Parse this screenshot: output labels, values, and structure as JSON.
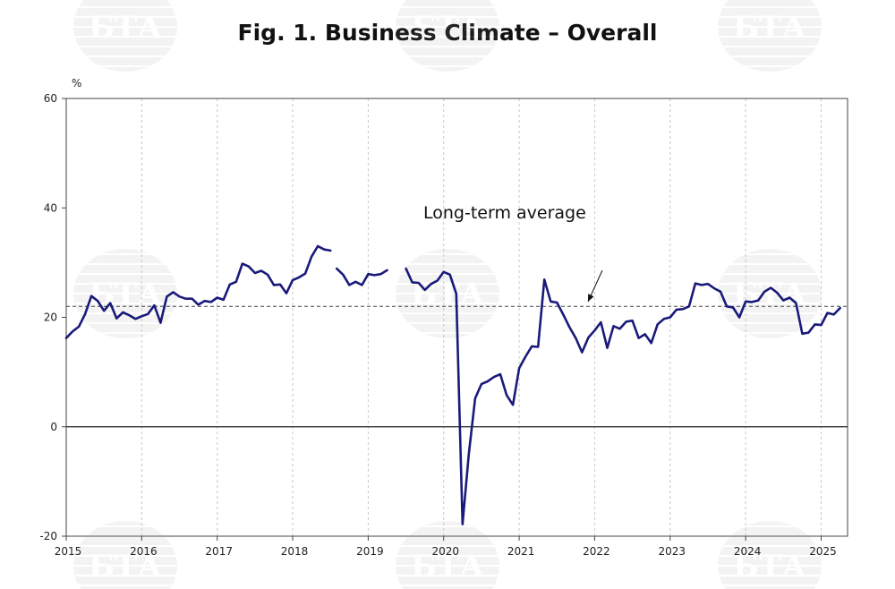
{
  "title": "Fig. 1. Business Climate – Overall",
  "chart_data": {
    "type": "line",
    "title": "Fig. 1. Business Climate – Overall",
    "ylabel": "%",
    "xlabel": "",
    "ylim": [
      -20,
      60
    ],
    "y_ticks": [
      "60",
      "40",
      "20",
      "0",
      "-20"
    ],
    "x_ticks": [
      "2015",
      "2016",
      "2017",
      "2018",
      "2019",
      "2020",
      "2021",
      "2022",
      "2023",
      "2024",
      "2025"
    ],
    "xlim": [
      2015.0,
      2025.35
    ],
    "grid": "vertical dashed at year boundaries",
    "long_term_average": 22,
    "annotation": "Long-term average",
    "watermark": "БТА",
    "colors": {
      "series": "#1a1a7a",
      "average_line": "#555555",
      "zero_line": "#222222",
      "grid": "#c8c8c8"
    },
    "series": [
      {
        "values": [
          [
            2015.0,
            16.2
          ],
          [
            2015.083,
            17.4
          ],
          [
            2015.167,
            18.3
          ],
          [
            2015.25,
            20.6
          ],
          [
            2015.333,
            23.9
          ],
          [
            2015.417,
            23.0
          ],
          [
            2015.5,
            21.2
          ],
          [
            2015.583,
            22.6
          ],
          [
            2015.667,
            19.8
          ],
          [
            2015.75,
            20.9
          ],
          [
            2015.833,
            20.4
          ],
          [
            2015.917,
            19.7
          ],
          [
            2016.0,
            20.2
          ],
          [
            2016.083,
            20.6
          ],
          [
            2016.167,
            22.2
          ],
          [
            2016.25,
            19.0
          ],
          [
            2016.333,
            23.8
          ],
          [
            2016.417,
            24.6
          ],
          [
            2016.5,
            23.8
          ],
          [
            2016.583,
            23.4
          ],
          [
            2016.667,
            23.4
          ],
          [
            2016.75,
            22.3
          ],
          [
            2016.833,
            23.0
          ],
          [
            2016.917,
            22.8
          ],
          [
            2017.0,
            23.6
          ],
          [
            2017.083,
            23.2
          ],
          [
            2017.167,
            26.0
          ],
          [
            2017.25,
            26.5
          ],
          [
            2017.333,
            29.8
          ],
          [
            2017.417,
            29.3
          ],
          [
            2017.5,
            28.1
          ],
          [
            2017.583,
            28.5
          ],
          [
            2017.667,
            27.8
          ],
          [
            2017.75,
            25.9
          ],
          [
            2017.833,
            26.0
          ],
          [
            2017.917,
            24.4
          ],
          [
            2018.0,
            26.8
          ],
          [
            2018.083,
            27.3
          ],
          [
            2018.167,
            28.0
          ],
          [
            2018.25,
            31.1
          ],
          [
            2018.333,
            33.0
          ],
          [
            2018.417,
            32.4
          ],
          [
            2018.5,
            32.2
          ],
          null,
          [
            2018.583,
            28.9
          ],
          [
            2018.667,
            27.8
          ],
          [
            2018.75,
            25.9
          ],
          [
            2018.833,
            26.5
          ],
          [
            2018.917,
            25.9
          ],
          [
            2019.0,
            27.9
          ],
          [
            2019.083,
            27.7
          ],
          [
            2019.167,
            27.9
          ],
          [
            2019.25,
            28.6
          ],
          null,
          [
            2019.5,
            28.9
          ],
          [
            2019.583,
            26.4
          ],
          [
            2019.667,
            26.3
          ],
          [
            2019.75,
            25.0
          ],
          [
            2019.833,
            26.1
          ],
          [
            2019.917,
            26.7
          ],
          [
            2020.0,
            28.3
          ],
          [
            2020.083,
            27.8
          ],
          [
            2020.167,
            24.3
          ],
          [
            2020.25,
            -17.8
          ],
          [
            2020.333,
            -5.0
          ],
          [
            2020.417,
            5.2
          ],
          [
            2020.5,
            7.8
          ],
          [
            2020.583,
            8.3
          ],
          [
            2020.667,
            9.1
          ],
          [
            2020.75,
            9.6
          ],
          [
            2020.833,
            5.8
          ],
          [
            2020.917,
            4.0
          ],
          [
            2021.0,
            10.7
          ],
          [
            2021.083,
            12.8
          ],
          [
            2021.167,
            14.7
          ],
          [
            2021.25,
            14.6
          ],
          [
            2021.333,
            26.9
          ],
          [
            2021.417,
            22.9
          ],
          [
            2021.5,
            22.7
          ],
          [
            2021.583,
            20.5
          ],
          [
            2021.667,
            18.2
          ],
          [
            2021.75,
            16.2
          ],
          [
            2021.833,
            13.6
          ],
          [
            2021.917,
            16.3
          ],
          [
            2022.0,
            17.6
          ],
          [
            2022.083,
            19.1
          ],
          [
            2022.167,
            14.4
          ],
          [
            2022.25,
            18.4
          ],
          [
            2022.333,
            17.9
          ],
          [
            2022.417,
            19.2
          ],
          [
            2022.5,
            19.4
          ],
          [
            2022.583,
            16.2
          ],
          [
            2022.667,
            16.9
          ],
          [
            2022.75,
            15.3
          ],
          [
            2022.833,
            18.7
          ],
          [
            2022.917,
            19.7
          ],
          [
            2023.0,
            20.0
          ],
          [
            2023.083,
            21.4
          ],
          [
            2023.167,
            21.5
          ],
          [
            2023.25,
            22.0
          ],
          [
            2023.333,
            26.2
          ],
          [
            2023.417,
            25.9
          ],
          [
            2023.5,
            26.1
          ],
          [
            2023.583,
            25.3
          ],
          [
            2023.667,
            24.7
          ],
          [
            2023.75,
            22.0
          ],
          [
            2023.833,
            21.8
          ],
          [
            2023.917,
            20.0
          ],
          [
            2024.0,
            22.9
          ],
          [
            2024.083,
            22.8
          ],
          [
            2024.167,
            23.1
          ],
          [
            2024.25,
            24.7
          ],
          [
            2024.333,
            25.4
          ],
          [
            2024.417,
            24.5
          ],
          [
            2024.5,
            23.1
          ],
          [
            2024.583,
            23.6
          ],
          [
            2024.667,
            22.6
          ],
          [
            2024.75,
            17.0
          ],
          [
            2024.833,
            17.2
          ],
          [
            2024.917,
            18.7
          ],
          [
            2025.0,
            18.6
          ],
          [
            2025.083,
            20.8
          ],
          [
            2025.167,
            20.5
          ],
          [
            2025.25,
            21.7
          ]
        ]
      }
    ]
  }
}
